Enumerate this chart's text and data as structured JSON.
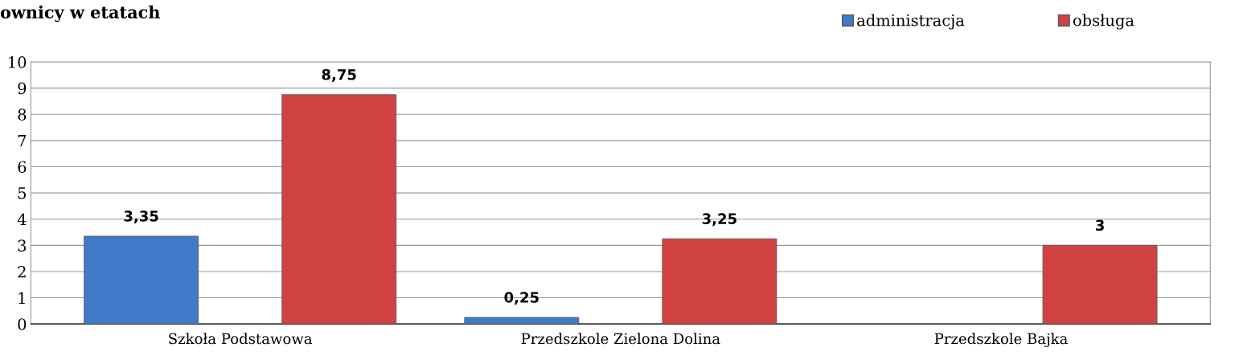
{
  "chart_data": {
    "type": "bar",
    "title": "ownicy w etatach",
    "categories": [
      "Szkoła Podstawowa",
      "Przedszkole Zielona Dolina",
      "Przedszkole Bajka"
    ],
    "series": [
      {
        "name": "administracja",
        "color": "#3f7bc8",
        "values": [
          3.35,
          0.25,
          null
        ],
        "value_labels": [
          "3,35",
          "0,25",
          null
        ]
      },
      {
        "name": "obsługa",
        "color": "#d04242",
        "values": [
          8.75,
          3.25,
          3
        ],
        "value_labels": [
          "8,75",
          "3,25",
          "3"
        ]
      }
    ],
    "ylim": [
      0,
      10
    ],
    "yticks": [
      0,
      1,
      2,
      3,
      4,
      5,
      6,
      7,
      8,
      9,
      10
    ],
    "grid": "y",
    "legend": "top right"
  }
}
